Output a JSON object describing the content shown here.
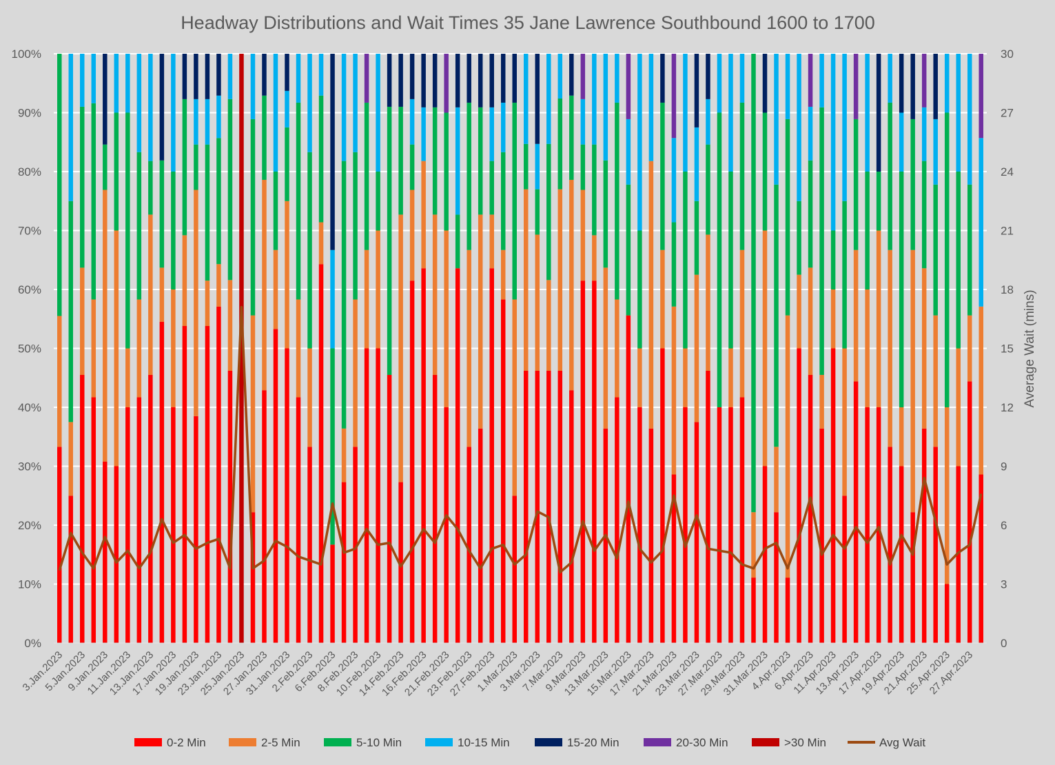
{
  "chart_data": {
    "type": "bar",
    "stacked": true,
    "normalized": true,
    "title": "Headway Distributions and Wait Times 35 Jane  Lawrence Southbound 1600 to 1700",
    "y_ticks": [
      "0%",
      "10%",
      "20%",
      "30%",
      "40%",
      "50%",
      "60%",
      "70%",
      "80%",
      "90%",
      "100%"
    ],
    "y2_ticks": [
      "0",
      "3",
      "6",
      "9",
      "12",
      "15",
      "18",
      "21",
      "24",
      "27",
      "30"
    ],
    "y2label": "Average Wait (mins)",
    "y2lim": [
      0,
      30
    ],
    "ylim": [
      0,
      100
    ],
    "x_tick_labels": [
      "3.Jan.2023",
      "5.Jan.2023",
      "9.Jan.2023",
      "11.Jan.2023",
      "13.Jan.2023",
      "17.Jan.2023",
      "19.Jan.2023",
      "23.Jan.2023",
      "25.Jan.2023",
      "27.Jan.2023",
      "31.Jan.2023",
      "2.Feb.2023",
      "6.Feb.2023",
      "8.Feb.2023",
      "10.Feb.2023",
      "14.Feb.2023",
      "16.Feb.2023",
      "21.Feb.2023",
      "23.Feb.2023",
      "27.Feb.2023",
      "1.Mar.2023",
      "3.Mar.2023",
      "7.Mar.2023",
      "9.Mar.2023",
      "13.Mar.2023",
      "15.Mar.2023",
      "17.Mar.2023",
      "21.Mar.2023",
      "23.Mar.2023",
      "27.Mar.2023",
      "29.Mar.2023",
      "31.Mar.2023",
      "4.Apr.2023",
      "6.Apr.2023",
      "11.Apr.2023",
      "13.Apr.2023",
      "17.Apr.2023",
      "19.Apr.2023",
      "21.Apr.2023",
      "25.Apr.2023",
      "27.Apr.2023"
    ],
    "bar_series": [
      {
        "name": "0-2 Min",
        "color": "#ff0000"
      },
      {
        "name": "2-5 Min",
        "color": "#ed7d31"
      },
      {
        "name": "5-10 Min",
        "color": "#00b050"
      },
      {
        "name": "10-15 Min",
        "color": "#00b0f0"
      },
      {
        "name": "15-20 Min",
        "color": "#002060"
      },
      {
        "name": "20-30 Min",
        "color": "#7030a0"
      },
      {
        "name": ">30 Min",
        "color": "#c00000"
      }
    ],
    "line_series": {
      "name": "Avg Wait",
      "color": "#9c4a12",
      "axis": "secondary"
    },
    "legend_position": "bottom",
    "grid": true,
    "stacks": [
      [
        33.3,
        22.2,
        44.5,
        0,
        0,
        0,
        0
      ],
      [
        25,
        12.5,
        37.5,
        25,
        0,
        0,
        0
      ],
      [
        45.5,
        18.2,
        27.3,
        9,
        0,
        0,
        0
      ],
      [
        41.7,
        16.6,
        33.3,
        8.4,
        0,
        0,
        0
      ],
      [
        30.8,
        46.1,
        7.7,
        0,
        15.4,
        0,
        0
      ],
      [
        30,
        40,
        20,
        10,
        0,
        0,
        0
      ],
      [
        40,
        10,
        40,
        10,
        0,
        0,
        0
      ],
      [
        41.7,
        16.6,
        25,
        16.7,
        0,
        0,
        0
      ],
      [
        45.5,
        27.2,
        9.1,
        18.2,
        0,
        0,
        0
      ],
      [
        54.5,
        9.2,
        18.2,
        0,
        18.1,
        0,
        0
      ],
      [
        40,
        20,
        20,
        20,
        0,
        0,
        0
      ],
      [
        53.8,
        15.4,
        23.1,
        0,
        7.7,
        0,
        0
      ],
      [
        38.5,
        38.4,
        7.7,
        7.7,
        7.7,
        0,
        0
      ],
      [
        53.8,
        7.7,
        23.1,
        7.7,
        7.7,
        0,
        0
      ],
      [
        57.1,
        7.2,
        21.4,
        7.2,
        7.1,
        0,
        0
      ],
      [
        46.2,
        15.4,
        30.7,
        7.7,
        0,
        0,
        0
      ],
      [
        0,
        0,
        0,
        0,
        0,
        0,
        100
      ],
      [
        22.2,
        33.4,
        33.3,
        11.1,
        0,
        0,
        0
      ],
      [
        42.9,
        35.7,
        14.3,
        0,
        7.1,
        0,
        0
      ],
      [
        53.3,
        13.4,
        13.3,
        20,
        0,
        0,
        0
      ],
      [
        50,
        25,
        12.5,
        6.2,
        6.3,
        0,
        0
      ],
      [
        41.7,
        16.6,
        33.4,
        8.3,
        0,
        0,
        0
      ],
      [
        33.3,
        16.7,
        33.3,
        16.7,
        0,
        0,
        0
      ],
      [
        64.3,
        7.1,
        21.5,
        7.1,
        0,
        0,
        0
      ],
      [
        16.7,
        0,
        33.3,
        16.7,
        33.3,
        0,
        0
      ],
      [
        27.3,
        9.1,
        45.4,
        18.2,
        0,
        0,
        0
      ],
      [
        33.3,
        25,
        25,
        16.7,
        0,
        0,
        0
      ],
      [
        50,
        16.7,
        25,
        0,
        0,
        8.3,
        0
      ],
      [
        50,
        20,
        10,
        20,
        0,
        0,
        0
      ],
      [
        45.5,
        0,
        45.5,
        0,
        9,
        0,
        0
      ],
      [
        27.3,
        45.4,
        18.3,
        0,
        9,
        0,
        0
      ],
      [
        61.5,
        15.4,
        7.7,
        7.7,
        7.7,
        0,
        0
      ],
      [
        63.6,
        18.2,
        0,
        9.1,
        9.1,
        0,
        0
      ],
      [
        45.5,
        27.2,
        18.2,
        0,
        9.1,
        0,
        0
      ],
      [
        40,
        30,
        20,
        0,
        0,
        10,
        0
      ],
      [
        63.6,
        0,
        9.1,
        18.2,
        9.1,
        0,
        0
      ],
      [
        33.3,
        33.4,
        25,
        0,
        8.3,
        0,
        0
      ],
      [
        36.4,
        36.3,
        18.2,
        0,
        9.1,
        0,
        0
      ],
      [
        63.6,
        9.1,
        9.1,
        9.1,
        9.1,
        0,
        0
      ],
      [
        58.3,
        8.4,
        16.6,
        8.4,
        8.3,
        0,
        0
      ],
      [
        25,
        33.3,
        33.4,
        0,
        8.3,
        0,
        0
      ],
      [
        46.2,
        30.8,
        7.7,
        15.3,
        0,
        0,
        0
      ],
      [
        46.2,
        23.1,
        7.7,
        7.7,
        15.3,
        0,
        0
      ],
      [
        46.2,
        15.4,
        23.1,
        15.3,
        0,
        0,
        0
      ],
      [
        46.2,
        30.8,
        15.4,
        7.6,
        0,
        0,
        0
      ],
      [
        42.9,
        35.7,
        14.3,
        0,
        7.1,
        0,
        0
      ],
      [
        61.5,
        15.4,
        7.7,
        7.7,
        0,
        7.7,
        0
      ],
      [
        61.5,
        7.7,
        15.4,
        15.4,
        0,
        0,
        0
      ],
      [
        36.4,
        27.3,
        18.2,
        18.1,
        0,
        0,
        0
      ],
      [
        41.7,
        16.6,
        33.4,
        8.3,
        0,
        0,
        0
      ],
      [
        55.6,
        0,
        22.2,
        11.1,
        0,
        11.1,
        0
      ],
      [
        40,
        10,
        20,
        30,
        0,
        0,
        0
      ],
      [
        36.4,
        45.4,
        0,
        18.2,
        0,
        0,
        0
      ],
      [
        50,
        16.7,
        25,
        0,
        8.3,
        0,
        0
      ],
      [
        28.6,
        28.5,
        14.3,
        14.3,
        0,
        14.3,
        0
      ],
      [
        40,
        10,
        30,
        20,
        0,
        0,
        0
      ],
      [
        37.5,
        25,
        12.5,
        12.5,
        12.5,
        0,
        0
      ],
      [
        46.2,
        23.1,
        15.3,
        7.7,
        7.7,
        0,
        0
      ],
      [
        40,
        0,
        50,
        10,
        0,
        0,
        0
      ],
      [
        40,
        10,
        30,
        20,
        0,
        0,
        0
      ],
      [
        41.7,
        25,
        25,
        8.3,
        0,
        0,
        0
      ],
      [
        11.1,
        11.1,
        77.8,
        0,
        0,
        0,
        0
      ],
      [
        30,
        40,
        20,
        0,
        10,
        0,
        0
      ],
      [
        22.2,
        11.1,
        44.5,
        22.2,
        0,
        0,
        0
      ],
      [
        11.1,
        44.5,
        33.3,
        11.1,
        0,
        0,
        0
      ],
      [
        50,
        12.5,
        12.5,
        25,
        0,
        0,
        0
      ],
      [
        45.5,
        18.2,
        18.2,
        9.1,
        0,
        9,
        0
      ],
      [
        36.4,
        9.1,
        45.4,
        9.1,
        0,
        0,
        0
      ],
      [
        50,
        10,
        10,
        30,
        0,
        0,
        0
      ],
      [
        25,
        25,
        25,
        25,
        0,
        0,
        0
      ],
      [
        44.4,
        22.3,
        22.2,
        0,
        0,
        11.1,
        0
      ],
      [
        40,
        20,
        20,
        20,
        0,
        0,
        0
      ],
      [
        40,
        30,
        10,
        0,
        20,
        0,
        0
      ],
      [
        33.3,
        33.4,
        25,
        8.3,
        0,
        0,
        0
      ],
      [
        30,
        10,
        40,
        10,
        10,
        0,
        0
      ],
      [
        22.2,
        44.5,
        22.2,
        0,
        11.1,
        0,
        0
      ],
      [
        36.4,
        27.2,
        18.2,
        9.1,
        0,
        9.1,
        0
      ],
      [
        33.3,
        22.3,
        22.2,
        11.1,
        11.1,
        0,
        0
      ],
      [
        10,
        30,
        50,
        10,
        0,
        0,
        0
      ],
      [
        30,
        20,
        30,
        20,
        0,
        0,
        0
      ],
      [
        44.4,
        11.2,
        22.2,
        22.2,
        0,
        0,
        0
      ],
      [
        28.6,
        28.5,
        0,
        28.6,
        0,
        14.3,
        0
      ]
    ],
    "avg_wait": [
      3.7,
      5.6,
      4.6,
      3.8,
      5.4,
      4.1,
      4.7,
      3.8,
      4.6,
      6.3,
      5.1,
      5.5,
      4.8,
      5.1,
      5.3,
      3.8,
      17.1,
      3.8,
      4.2,
      5.2,
      4.9,
      4.4,
      4.2,
      4.0,
      7.1,
      4.6,
      4.8,
      5.8,
      5.0,
      5.1,
      3.9,
      4.8,
      5.8,
      5.1,
      6.5,
      5.8,
      4.7,
      3.8,
      4.8,
      5.0,
      4.0,
      4.5,
      6.7,
      6.4,
      3.6,
      4.1,
      6.2,
      4.7,
      5.5,
      4.3,
      7.2,
      4.8,
      4.1,
      4.7,
      7.5,
      4.9,
      6.5,
      4.8,
      4.7,
      4.6,
      4.0,
      3.8,
      4.8,
      5.1,
      3.8,
      5.4,
      7.4,
      4.5,
      5.5,
      4.8,
      5.9,
      5.1,
      5.9,
      4.0,
      5.5,
      4.5,
      8.4,
      6.2,
      4.0,
      4.6,
      5.0,
      7.6
    ]
  }
}
